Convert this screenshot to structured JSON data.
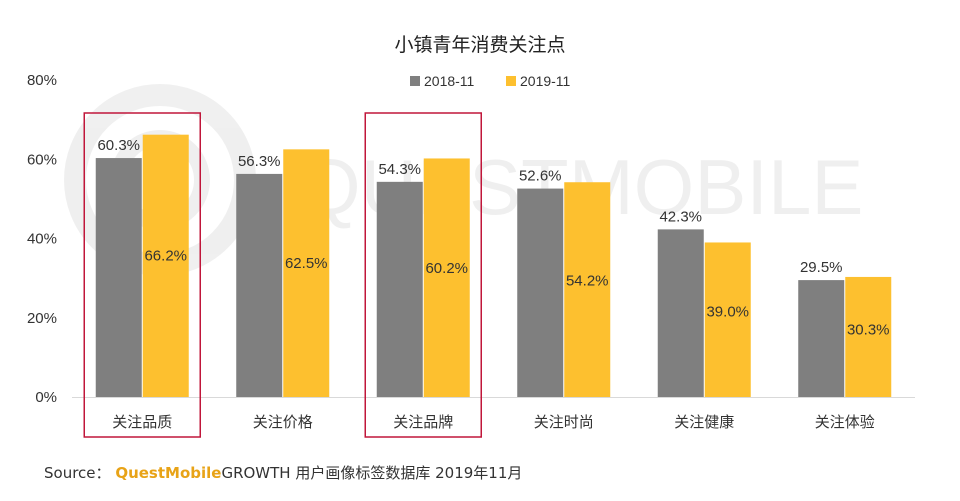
{
  "chart_data": {
    "type": "bar",
    "title": "小镇青年消费关注点",
    "categories": [
      "关注品质",
      "关注价格",
      "关注品牌",
      "关注时尚",
      "关注健康",
      "关注体验"
    ],
    "series": [
      {
        "name": "2018-11",
        "values": [
          60.3,
          56.3,
          54.3,
          52.6,
          42.3,
          29.5
        ],
        "labels": [
          "60.3%",
          "56.3%",
          "54.3%",
          "52.6%",
          "42.3%",
          "29.5%"
        ],
        "color": "#7f7f7f"
      },
      {
        "name": "2019-11",
        "values": [
          66.2,
          62.5,
          60.2,
          54.2,
          39.0,
          30.3
        ],
        "labels": [
          "66.2%",
          "62.5%",
          "60.2%",
          "54.2%",
          "39.0%",
          "30.3%"
        ],
        "color": "#fdc02f"
      }
    ],
    "ylim": [
      0,
      80
    ],
    "yticks": [
      0,
      20,
      40,
      60,
      80
    ],
    "ytick_labels": [
      "0%",
      "20%",
      "40%",
      "60%",
      "80%"
    ],
    "legend_position": "top",
    "grid": false,
    "highlighted_categories": [
      "关注品质",
      "关注品牌"
    ],
    "highlight_color": "#c0163a"
  },
  "source": {
    "prefix": "Source：",
    "brand": "QuestMobile",
    "text": "GROWTH 用户画像标签数据库 2019年11月"
  },
  "watermark": "QUESTMOBILE"
}
